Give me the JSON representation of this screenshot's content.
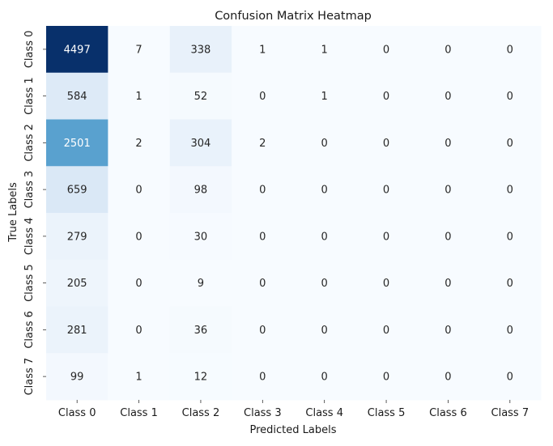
{
  "chart_data": {
    "type": "heatmap",
    "title": "Confusion Matrix Heatmap",
    "xlabel": "Predicted Labels",
    "ylabel": "True Labels",
    "x_categories": [
      "Class 0",
      "Class 1",
      "Class 2",
      "Class 3",
      "Class 4",
      "Class 5",
      "Class 6",
      "Class 7"
    ],
    "y_categories": [
      "Class 0",
      "Class 1",
      "Class 2",
      "Class 3",
      "Class 4",
      "Class 5",
      "Class 6",
      "Class 7"
    ],
    "values": [
      [
        4497,
        7,
        338,
        1,
        1,
        0,
        0,
        0
      ],
      [
        584,
        1,
        52,
        0,
        1,
        0,
        0,
        0
      ],
      [
        2501,
        2,
        304,
        2,
        0,
        0,
        0,
        0
      ],
      [
        659,
        0,
        98,
        0,
        0,
        0,
        0,
        0
      ],
      [
        279,
        0,
        30,
        0,
        0,
        0,
        0,
        0
      ],
      [
        205,
        0,
        9,
        0,
        0,
        0,
        0,
        0
      ],
      [
        281,
        0,
        36,
        0,
        0,
        0,
        0,
        0
      ],
      [
        99,
        1,
        12,
        0,
        0,
        0,
        0,
        0
      ]
    ],
    "colormap": "Blues",
    "value_range": [
      0,
      4497
    ],
    "colorbar": false,
    "grid": false,
    "annotations": true
  }
}
